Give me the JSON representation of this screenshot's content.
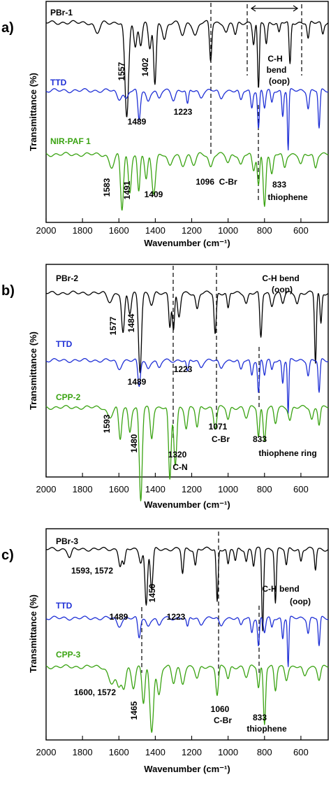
{
  "chart_data": [
    {
      "type": "line",
      "panel": "a)",
      "xlabel": "Wavenumber (cm⁻¹)",
      "ylabel": "Transmittance (%)",
      "xlim": [
        2000,
        450
      ],
      "x_reversed": true,
      "x_ticks": [
        2000,
        1800,
        1600,
        1400,
        1200,
        1000,
        800,
        600
      ],
      "x_tick_labels": [
        "2000",
        "1800",
        "1600",
        "1400",
        "1200",
        "1000",
        "800",
        "600"
      ],
      "series": [
        {
          "name": "PBr-1",
          "color": "#000000",
          "baseline": 0.08,
          "peaks": [
            [
              1720,
              0.05,
              14
            ],
            [
              1557,
              0.45,
              10
            ],
            [
              1510,
              0.12,
              8
            ],
            [
              1480,
              0.1,
              8
            ],
            [
              1430,
              0.12,
              8
            ],
            [
              1402,
              0.3,
              7
            ],
            [
              1350,
              0.08,
              10
            ],
            [
              1250,
              0.06,
              12
            ],
            [
              1180,
              0.06,
              12
            ],
            [
              1096,
              0.18,
              6
            ],
            [
              1010,
              0.05,
              10
            ],
            [
              960,
              0.06,
              8
            ],
            [
              860,
              0.1,
              6
            ],
            [
              833,
              0.32,
              5
            ],
            [
              790,
              0.1,
              6
            ],
            [
              720,
              0.05,
              6
            ],
            [
              660,
              0.2,
              5
            ],
            [
              560,
              0.08,
              6
            ],
            [
              480,
              0.05,
              6
            ]
          ]
        },
        {
          "name": "TTD",
          "color": "#1f30d6",
          "baseline": 0.4,
          "peaks": [
            [
              1600,
              0.04,
              12
            ],
            [
              1560,
              0.04,
              10
            ],
            [
              1489,
              0.14,
              7
            ],
            [
              1440,
              0.05,
              10
            ],
            [
              1380,
              0.04,
              10
            ],
            [
              1300,
              0.04,
              10
            ],
            [
              1223,
              0.07,
              6
            ],
            [
              1150,
              0.03,
              10
            ],
            [
              1040,
              0.04,
              10
            ],
            [
              930,
              0.05,
              8
            ],
            [
              870,
              0.08,
              6
            ],
            [
              833,
              0.18,
              5
            ],
            [
              800,
              0.08,
              6
            ],
            [
              760,
              0.06,
              6
            ],
            [
              700,
              0.12,
              5
            ],
            [
              670,
              0.28,
              4
            ],
            [
              560,
              0.08,
              6
            ],
            [
              500,
              0.18,
              5
            ]
          ]
        },
        {
          "name": "NIR-PAF 1",
          "color": "#3aa312",
          "baseline": 0.7,
          "peaks": [
            [
              1640,
              0.06,
              14
            ],
            [
              1583,
              0.26,
              8
            ],
            [
              1540,
              0.18,
              8
            ],
            [
              1491,
              0.18,
              7
            ],
            [
              1450,
              0.12,
              8
            ],
            [
              1409,
              0.18,
              10
            ],
            [
              1320,
              0.06,
              12
            ],
            [
              1250,
              0.05,
              12
            ],
            [
              1190,
              0.05,
              12
            ],
            [
              1096,
              0.06,
              10
            ],
            [
              1000,
              0.04,
              10
            ],
            [
              930,
              0.05,
              10
            ],
            [
              860,
              0.08,
              8
            ],
            [
              833,
              0.14,
              6
            ],
            [
              800,
              0.24,
              7
            ],
            [
              760,
              0.1,
              8
            ],
            [
              690,
              0.06,
              8
            ],
            [
              600,
              0.05,
              10
            ],
            [
              520,
              0.06,
              8
            ]
          ]
        }
      ],
      "series_labels": [
        "PBr-1",
        "TTD",
        "NIR-PAF 1"
      ],
      "annotations": [
        "1557",
        "1402",
        "1489",
        "1223",
        "1583",
        "1491",
        "1409",
        "1096  C-Br",
        "833",
        "thiophene",
        "C-H",
        "bend",
        "(oop)"
      ],
      "guides_x": [
        1096,
        833,
        900,
        600
      ]
    },
    {
      "type": "line",
      "panel": "b)",
      "xlabel": "Wavenumber (cm⁻¹)",
      "ylabel": "Transmittance (%)",
      "xlim": [
        2000,
        450
      ],
      "x_reversed": true,
      "x_ticks": [
        2000,
        1800,
        1600,
        1400,
        1200,
        1000,
        800,
        600
      ],
      "x_tick_labels": [
        "2000",
        "1800",
        "1600",
        "1400",
        "1200",
        "1000",
        "800",
        "600"
      ],
      "series": [
        {
          "name": "PBr-2",
          "color": "#000000",
          "baseline": 0.12,
          "peaks": [
            [
              1650,
              0.04,
              14
            ],
            [
              1577,
              0.2,
              8
            ],
            [
              1540,
              0.1,
              8
            ],
            [
              1484,
              0.38,
              8
            ],
            [
              1420,
              0.06,
              10
            ],
            [
              1320,
              0.16,
              6
            ],
            [
              1300,
              0.18,
              6
            ],
            [
              1270,
              0.12,
              8
            ],
            [
              1170,
              0.08,
              8
            ],
            [
              1071,
              0.2,
              6
            ],
            [
              1000,
              0.08,
              6
            ],
            [
              900,
              0.05,
              8
            ],
            [
              820,
              0.22,
              6
            ],
            [
              760,
              0.06,
              8
            ],
            [
              700,
              0.05,
              8
            ],
            [
              620,
              0.05,
              8
            ],
            [
              520,
              0.34,
              5
            ],
            [
              490,
              0.15,
              5
            ]
          ]
        },
        {
          "name": "TTD",
          "color": "#1f30d6",
          "baseline": 0.45,
          "peaks": [
            [
              1600,
              0.04,
              12
            ],
            [
              1489,
              0.13,
              7
            ],
            [
              1440,
              0.04,
              10
            ],
            [
              1380,
              0.04,
              10
            ],
            [
              1223,
              0.06,
              6
            ],
            [
              1150,
              0.03,
              10
            ],
            [
              1040,
              0.04,
              10
            ],
            [
              930,
              0.05,
              8
            ],
            [
              870,
              0.07,
              6
            ],
            [
              833,
              0.16,
              5
            ],
            [
              800,
              0.07,
              6
            ],
            [
              760,
              0.05,
              6
            ],
            [
              700,
              0.11,
              5
            ],
            [
              670,
              0.26,
              4
            ],
            [
              560,
              0.07,
              6
            ],
            [
              500,
              0.16,
              5
            ]
          ]
        },
        {
          "name": "CPP-2",
          "color": "#3aa312",
          "baseline": 0.68,
          "peaks": [
            [
              1650,
              0.05,
              14
            ],
            [
              1593,
              0.16,
              8
            ],
            [
              1540,
              0.12,
              8
            ],
            [
              1480,
              0.46,
              8
            ],
            [
              1420,
              0.15,
              8
            ],
            [
              1320,
              0.36,
              7
            ],
            [
              1290,
              0.28,
              8
            ],
            [
              1230,
              0.1,
              8
            ],
            [
              1170,
              0.1,
              8
            ],
            [
              1071,
              0.1,
              8
            ],
            [
              1000,
              0.06,
              8
            ],
            [
              900,
              0.05,
              10
            ],
            [
              833,
              0.14,
              6
            ],
            [
              800,
              0.16,
              7
            ],
            [
              740,
              0.08,
              8
            ],
            [
              660,
              0.06,
              8
            ],
            [
              540,
              0.06,
              8
            ],
            [
              500,
              0.08,
              6
            ]
          ]
        }
      ],
      "series_labels": [
        "PBr-2",
        "TTD",
        "CPP-2"
      ],
      "annotations": [
        "1577",
        "1484",
        "1489",
        "1223",
        "1593",
        "1480",
        "1320",
        "C-N",
        "1071",
        "C-Br",
        "833",
        "thiophene ring",
        "C-H bend",
        "(oop)"
      ],
      "guides_x": [
        1320,
        1071,
        833
      ]
    },
    {
      "type": "line",
      "panel": "c)",
      "xlabel": "Wavenumber (cm⁻¹)",
      "ylabel": "Transmittance (%)",
      "xlim": [
        2000,
        450
      ],
      "x_reversed": true,
      "x_ticks": [
        2000,
        1800,
        1600,
        1400,
        1200,
        1000,
        800,
        600
      ],
      "x_tick_labels": [
        "2000",
        "1800",
        "1600",
        "1400",
        "1200",
        "1000",
        "800",
        "600"
      ],
      "series": [
        {
          "name": "PBr-3",
          "color": "#000000",
          "baseline": 0.08,
          "peaks": [
            [
              1870,
              0.04,
              10
            ],
            [
              1593,
              0.08,
              8
            ],
            [
              1572,
              0.08,
              7
            ],
            [
              1480,
              0.06,
              8
            ],
            [
              1450,
              0.28,
              7
            ],
            [
              1420,
              0.2,
              7
            ],
            [
              1250,
              0.12,
              6
            ],
            [
              1180,
              0.08,
              6
            ],
            [
              1060,
              0.26,
              5
            ],
            [
              1000,
              0.08,
              6
            ],
            [
              960,
              0.06,
              6
            ],
            [
              900,
              0.06,
              6
            ],
            [
              860,
              0.08,
              6
            ],
            [
              810,
              0.4,
              5
            ],
            [
              740,
              0.26,
              5
            ],
            [
              680,
              0.08,
              6
            ],
            [
              600,
              0.06,
              6
            ],
            [
              520,
              0.1,
              5
            ]
          ]
        },
        {
          "name": "TTD",
          "color": "#1f30d6",
          "baseline": 0.42,
          "peaks": [
            [
              1600,
              0.04,
              12
            ],
            [
              1489,
              0.1,
              7
            ],
            [
              1440,
              0.04,
              10
            ],
            [
              1380,
              0.04,
              10
            ],
            [
              1223,
              0.05,
              6
            ],
            [
              1150,
              0.03,
              10
            ],
            [
              1040,
              0.04,
              10
            ],
            [
              930,
              0.04,
              8
            ],
            [
              870,
              0.07,
              6
            ],
            [
              833,
              0.14,
              5
            ],
            [
              800,
              0.07,
              6
            ],
            [
              760,
              0.05,
              6
            ],
            [
              700,
              0.1,
              5
            ],
            [
              670,
              0.24,
              4
            ],
            [
              560,
              0.07,
              6
            ],
            [
              500,
              0.14,
              5
            ]
          ]
        },
        {
          "name": "CPP-3",
          "color": "#3aa312",
          "baseline": 0.66,
          "peaks": [
            [
              1640,
              0.08,
              18
            ],
            [
              1600,
              0.1,
              12
            ],
            [
              1572,
              0.1,
              10
            ],
            [
              1520,
              0.1,
              10
            ],
            [
              1465,
              0.18,
              8
            ],
            [
              1420,
              0.32,
              10
            ],
            [
              1380,
              0.14,
              10
            ],
            [
              1300,
              0.08,
              10
            ],
            [
              1250,
              0.08,
              10
            ],
            [
              1170,
              0.06,
              10
            ],
            [
              1060,
              0.14,
              7
            ],
            [
              1000,
              0.06,
              8
            ],
            [
              900,
              0.05,
              10
            ],
            [
              833,
              0.1,
              6
            ],
            [
              800,
              0.28,
              6
            ],
            [
              740,
              0.12,
              7
            ],
            [
              680,
              0.06,
              8
            ],
            [
              580,
              0.05,
              10
            ],
            [
              500,
              0.06,
              8
            ]
          ]
        }
      ],
      "series_labels": [
        "PBr-3",
        "TTD",
        "CPP-3"
      ],
      "annotations": [
        "1593, 1572",
        "1450",
        "1489",
        "1223",
        "1600, 1572",
        "1465",
        "1060",
        "C-Br",
        "833",
        "thiophene",
        "C-H bend",
        "(oop)"
      ],
      "guides_x": [
        1489,
        1060,
        833
      ]
    }
  ]
}
